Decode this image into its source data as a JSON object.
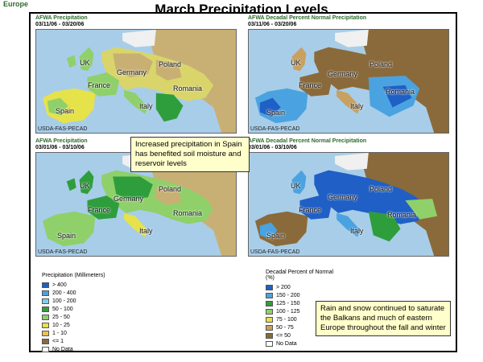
{
  "region_label": "Europe",
  "title": "March Precipitation Levels",
  "credit": "USDA-FAS-PECAD",
  "panels": [
    {
      "title": "AFWA Precipitation",
      "dates": "03/11/06 - 03/20/06"
    },
    {
      "title": "AFWA Decadal Percent Normal Precipitation",
      "dates": "03/11/06 - 03/20/06"
    },
    {
      "title": "AFWA Precipitation",
      "dates": "03/01/06 - 03/10/06"
    },
    {
      "title": "AFWA Decadal Percent Normal Precipitation",
      "dates": "03/01/06 - 03/10/06"
    }
  ],
  "countries": {
    "uk": "UK",
    "germany": "Germany",
    "poland": "Poland",
    "france": "France",
    "romania": "Romania",
    "italy": "Italy",
    "spain": "Spain"
  },
  "callouts": {
    "spain": "Increased precipitation in Spain has benefited soil moisture and reservoir levels",
    "balkans": "Rain and snow continued to saturate the Balkans and much of eastern Europe throughout the fall and winter"
  },
  "legend_precip": {
    "title": "Precipitation (Millimeters)",
    "items": [
      {
        "label": "> 400",
        "color": "#1f5fc6"
      },
      {
        "label": "200 - 400",
        "color": "#4aa3e0"
      },
      {
        "label": "100 - 200",
        "color": "#7fd0ee"
      },
      {
        "label": "50 - 100",
        "color": "#2e9e3c"
      },
      {
        "label": "25 - 50",
        "color": "#8fd06a"
      },
      {
        "label": "10 - 25",
        "color": "#e6e24a"
      },
      {
        "label": "1 - 10",
        "color": "#f0c050"
      },
      {
        "label": "<= 1",
        "color": "#8a6a3a"
      },
      {
        "label": "No Data",
        "color": "#ffffff"
      }
    ]
  },
  "legend_percent": {
    "title": "Decadal Percent of Normal (%)",
    "items": [
      {
        "label": "> 200",
        "color": "#1f5fc6"
      },
      {
        "label": "150 - 200",
        "color": "#4aa3e0"
      },
      {
        "label": "125 - 150",
        "color": "#2e9e3c"
      },
      {
        "label": "100 - 125",
        "color": "#8fd06a"
      },
      {
        "label": "75 - 100",
        "color": "#e6e24a"
      },
      {
        "label": "50 - 75",
        "color": "#c8a060"
      },
      {
        "label": "<= 50",
        "color": "#8a6a3a"
      },
      {
        "label": "No Data",
        "color": "#ffffff"
      }
    ]
  }
}
